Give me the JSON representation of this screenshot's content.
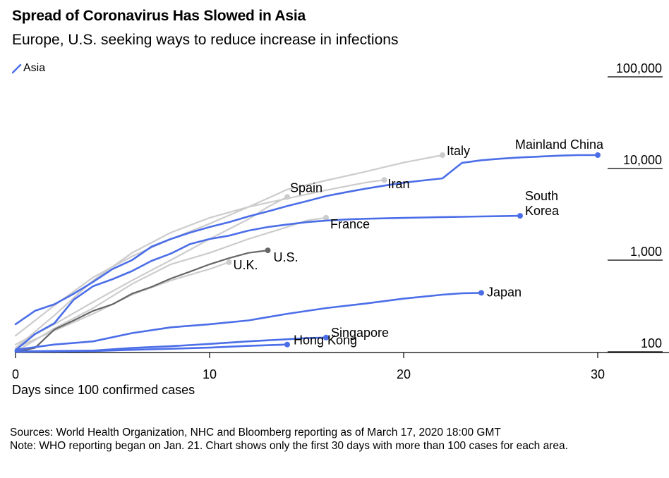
{
  "header": {
    "title": "Spread of Coronavirus Has Slowed in Asia",
    "subtitle": "Europe, U.S. seeking ways to reduce increase in infections"
  },
  "legend": {
    "label": "Asia",
    "color": "#4b6ee8"
  },
  "footer": {
    "sources": "Sources: World Health Organization, NHC and Bloomberg reporting as of March 17, 2020 18:00 GMT",
    "note": "Note: WHO reporting began on Jan. 21. Chart shows only the first 30 days with more than 100 cases for each area."
  },
  "chart_data": {
    "type": "line",
    "xlabel": "Days since 100 confirmed cases",
    "ylabel": "",
    "y_scale": "log",
    "xlim": [
      0,
      33
    ],
    "ylim": [
      100,
      100000
    ],
    "x_ticks": [
      0,
      10,
      20,
      30
    ],
    "y_ticks": [
      {
        "value": 100,
        "label": "100"
      },
      {
        "value": 1000,
        "label": "1,000"
      },
      {
        "value": 10000,
        "label": "10,000"
      },
      {
        "value": 100000,
        "label": "100,000"
      }
    ],
    "grid": false,
    "colors": {
      "asia": "#4b6ee8",
      "us": "#666666",
      "other": "#cccccc"
    },
    "series": [
      {
        "name": "Mainland China",
        "group": "asia",
        "label_lines": [
          "Mainland China"
        ],
        "x": [
          0,
          1,
          2,
          3,
          4,
          5,
          6,
          7,
          8,
          9,
          10,
          11,
          12,
          13,
          14,
          15,
          16,
          17,
          18,
          19,
          20,
          21,
          22,
          23,
          24,
          25,
          26,
          27,
          28,
          29,
          30
        ],
        "y": [
          200,
          280,
          330,
          430,
          580,
          800,
          1000,
          1400,
          1700,
          2000,
          2300,
          2600,
          3000,
          3400,
          3900,
          4400,
          5000,
          5500,
          6000,
          6500,
          7000,
          7400,
          7800,
          11500,
          12300,
          12800,
          13200,
          13500,
          13800,
          14000,
          14000
        ]
      },
      {
        "name": "South Korea",
        "group": "asia",
        "label_lines": [
          "South",
          "Korea"
        ],
        "x": [
          0,
          1,
          2,
          3,
          4,
          5,
          6,
          7,
          8,
          9,
          10,
          11,
          12,
          13,
          14,
          15,
          16,
          17,
          18,
          19,
          20,
          21,
          22,
          23,
          24,
          25,
          26
        ],
        "y": [
          104,
          156,
          205,
          370,
          520,
          620,
          760,
          980,
          1180,
          1500,
          1700,
          1850,
          2100,
          2300,
          2450,
          2600,
          2700,
          2780,
          2830,
          2860,
          2890,
          2920,
          2950,
          2970,
          3000,
          3020,
          3045
        ]
      },
      {
        "name": "Japan",
        "group": "asia",
        "label_lines": [
          "Japan"
        ],
        "x": [
          0,
          2,
          4,
          6,
          8,
          10,
          12,
          14,
          16,
          18,
          20,
          22,
          23,
          24
        ],
        "y": [
          105,
          120,
          130,
          160,
          185,
          200,
          220,
          260,
          300,
          335,
          380,
          420,
          435,
          440
        ]
      },
      {
        "name": "Singapore",
        "group": "asia",
        "label_lines": [
          "Singapore"
        ],
        "x": [
          0,
          4,
          6,
          8,
          10,
          12,
          14,
          15,
          16
        ],
        "y": [
          101,
          103,
          110,
          115,
          122,
          130,
          137,
          141,
          143
        ]
      },
      {
        "name": "Hong Kong",
        "group": "asia",
        "label_lines": [
          "Hong Kong"
        ],
        "x": [
          0,
          2,
          4,
          6,
          8,
          10,
          12,
          14
        ],
        "y": [
          100,
          101,
          102,
          105,
          108,
          111,
          116,
          120
        ]
      },
      {
        "name": "Italy",
        "group": "other",
        "label_lines": [
          "Italy"
        ],
        "x": [
          0,
          2,
          4,
          6,
          8,
          10,
          12,
          14,
          16,
          18,
          20,
          22
        ],
        "y": [
          150,
          320,
          650,
          1100,
          1700,
          2500,
          3800,
          5900,
          7400,
          9200,
          11600,
          14000
        ]
      },
      {
        "name": "Iran",
        "group": "other",
        "label_lines": [
          "Iran"
        ],
        "x": [
          0,
          2,
          4,
          6,
          8,
          10,
          12,
          14,
          16,
          18,
          19
        ],
        "y": [
          110,
          250,
          600,
          1200,
          2000,
          2900,
          3800,
          4700,
          5800,
          7000,
          7500
        ]
      },
      {
        "name": "Spain",
        "group": "other",
        "label_lines": [
          "Spain"
        ],
        "x": [
          0,
          2,
          4,
          6,
          8,
          10,
          12,
          13,
          14
        ],
        "y": [
          120,
          200,
          350,
          600,
          1000,
          1700,
          2800,
          3800,
          4900
        ]
      },
      {
        "name": "France",
        "group": "other",
        "label_lines": [
          "France"
        ],
        "x": [
          0,
          2,
          4,
          6,
          8,
          10,
          12,
          14,
          15,
          16
        ],
        "y": [
          100,
          180,
          300,
          550,
          900,
          1200,
          1700,
          2300,
          2700,
          2900
        ]
      },
      {
        "name": "U.K.",
        "group": "other",
        "label_lines": [
          "U.K."
        ],
        "x": [
          0,
          2,
          4,
          6,
          8,
          10,
          11
        ],
        "y": [
          110,
          170,
          260,
          420,
          600,
          800,
          950
        ]
      },
      {
        "name": "U.S.",
        "group": "us",
        "label_lines": [
          "U.S."
        ],
        "x": [
          0,
          1,
          2,
          3,
          4,
          5,
          6,
          7,
          8,
          9,
          10,
          11,
          12,
          13
        ],
        "y": [
          100,
          110,
          175,
          220,
          280,
          330,
          430,
          510,
          630,
          750,
          900,
          1050,
          1200,
          1280
        ]
      }
    ]
  }
}
